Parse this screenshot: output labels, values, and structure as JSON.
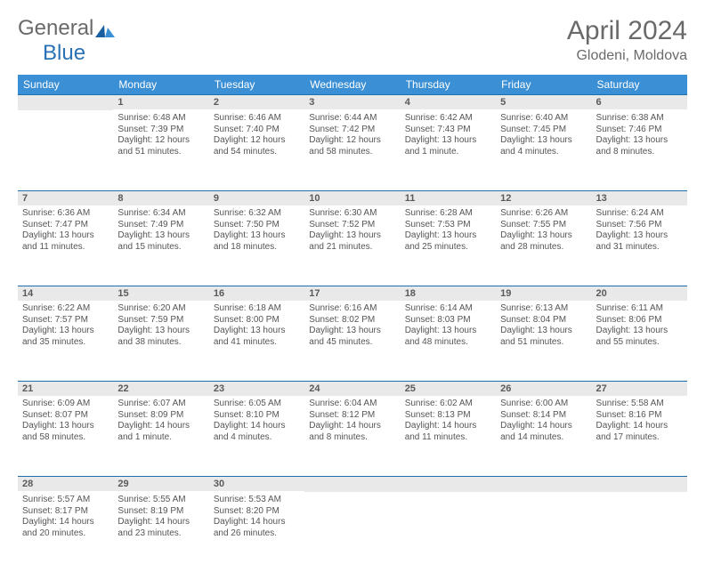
{
  "logo": {
    "word1": "General",
    "word2": "Blue"
  },
  "title": {
    "month": "April 2024",
    "location": "Glodeni, Moldova"
  },
  "colors": {
    "header_bg": "#3b8fd4",
    "header_text": "#ffffff",
    "daynum_bg": "#e9e9e9",
    "rule": "#1f6fae",
    "body_text": "#555555",
    "logo_gray": "#6a6a6a",
    "logo_blue": "#2a72b5"
  },
  "weekdays": [
    "Sunday",
    "Monday",
    "Tuesday",
    "Wednesday",
    "Thursday",
    "Friday",
    "Saturday"
  ],
  "weeks": [
    [
      null,
      {
        "n": "1",
        "sr": "Sunrise: 6:48 AM",
        "ss": "Sunset: 7:39 PM",
        "d1": "Daylight: 12 hours",
        "d2": "and 51 minutes."
      },
      {
        "n": "2",
        "sr": "Sunrise: 6:46 AM",
        "ss": "Sunset: 7:40 PM",
        "d1": "Daylight: 12 hours",
        "d2": "and 54 minutes."
      },
      {
        "n": "3",
        "sr": "Sunrise: 6:44 AM",
        "ss": "Sunset: 7:42 PM",
        "d1": "Daylight: 12 hours",
        "d2": "and 58 minutes."
      },
      {
        "n": "4",
        "sr": "Sunrise: 6:42 AM",
        "ss": "Sunset: 7:43 PM",
        "d1": "Daylight: 13 hours",
        "d2": "and 1 minute."
      },
      {
        "n": "5",
        "sr": "Sunrise: 6:40 AM",
        "ss": "Sunset: 7:45 PM",
        "d1": "Daylight: 13 hours",
        "d2": "and 4 minutes."
      },
      {
        "n": "6",
        "sr": "Sunrise: 6:38 AM",
        "ss": "Sunset: 7:46 PM",
        "d1": "Daylight: 13 hours",
        "d2": "and 8 minutes."
      }
    ],
    [
      {
        "n": "7",
        "sr": "Sunrise: 6:36 AM",
        "ss": "Sunset: 7:47 PM",
        "d1": "Daylight: 13 hours",
        "d2": "and 11 minutes."
      },
      {
        "n": "8",
        "sr": "Sunrise: 6:34 AM",
        "ss": "Sunset: 7:49 PM",
        "d1": "Daylight: 13 hours",
        "d2": "and 15 minutes."
      },
      {
        "n": "9",
        "sr": "Sunrise: 6:32 AM",
        "ss": "Sunset: 7:50 PM",
        "d1": "Daylight: 13 hours",
        "d2": "and 18 minutes."
      },
      {
        "n": "10",
        "sr": "Sunrise: 6:30 AM",
        "ss": "Sunset: 7:52 PM",
        "d1": "Daylight: 13 hours",
        "d2": "and 21 minutes."
      },
      {
        "n": "11",
        "sr": "Sunrise: 6:28 AM",
        "ss": "Sunset: 7:53 PM",
        "d1": "Daylight: 13 hours",
        "d2": "and 25 minutes."
      },
      {
        "n": "12",
        "sr": "Sunrise: 6:26 AM",
        "ss": "Sunset: 7:55 PM",
        "d1": "Daylight: 13 hours",
        "d2": "and 28 minutes."
      },
      {
        "n": "13",
        "sr": "Sunrise: 6:24 AM",
        "ss": "Sunset: 7:56 PM",
        "d1": "Daylight: 13 hours",
        "d2": "and 31 minutes."
      }
    ],
    [
      {
        "n": "14",
        "sr": "Sunrise: 6:22 AM",
        "ss": "Sunset: 7:57 PM",
        "d1": "Daylight: 13 hours",
        "d2": "and 35 minutes."
      },
      {
        "n": "15",
        "sr": "Sunrise: 6:20 AM",
        "ss": "Sunset: 7:59 PM",
        "d1": "Daylight: 13 hours",
        "d2": "and 38 minutes."
      },
      {
        "n": "16",
        "sr": "Sunrise: 6:18 AM",
        "ss": "Sunset: 8:00 PM",
        "d1": "Daylight: 13 hours",
        "d2": "and 41 minutes."
      },
      {
        "n": "17",
        "sr": "Sunrise: 6:16 AM",
        "ss": "Sunset: 8:02 PM",
        "d1": "Daylight: 13 hours",
        "d2": "and 45 minutes."
      },
      {
        "n": "18",
        "sr": "Sunrise: 6:14 AM",
        "ss": "Sunset: 8:03 PM",
        "d1": "Daylight: 13 hours",
        "d2": "and 48 minutes."
      },
      {
        "n": "19",
        "sr": "Sunrise: 6:13 AM",
        "ss": "Sunset: 8:04 PM",
        "d1": "Daylight: 13 hours",
        "d2": "and 51 minutes."
      },
      {
        "n": "20",
        "sr": "Sunrise: 6:11 AM",
        "ss": "Sunset: 8:06 PM",
        "d1": "Daylight: 13 hours",
        "d2": "and 55 minutes."
      }
    ],
    [
      {
        "n": "21",
        "sr": "Sunrise: 6:09 AM",
        "ss": "Sunset: 8:07 PM",
        "d1": "Daylight: 13 hours",
        "d2": "and 58 minutes."
      },
      {
        "n": "22",
        "sr": "Sunrise: 6:07 AM",
        "ss": "Sunset: 8:09 PM",
        "d1": "Daylight: 14 hours",
        "d2": "and 1 minute."
      },
      {
        "n": "23",
        "sr": "Sunrise: 6:05 AM",
        "ss": "Sunset: 8:10 PM",
        "d1": "Daylight: 14 hours",
        "d2": "and 4 minutes."
      },
      {
        "n": "24",
        "sr": "Sunrise: 6:04 AM",
        "ss": "Sunset: 8:12 PM",
        "d1": "Daylight: 14 hours",
        "d2": "and 8 minutes."
      },
      {
        "n": "25",
        "sr": "Sunrise: 6:02 AM",
        "ss": "Sunset: 8:13 PM",
        "d1": "Daylight: 14 hours",
        "d2": "and 11 minutes."
      },
      {
        "n": "26",
        "sr": "Sunrise: 6:00 AM",
        "ss": "Sunset: 8:14 PM",
        "d1": "Daylight: 14 hours",
        "d2": "and 14 minutes."
      },
      {
        "n": "27",
        "sr": "Sunrise: 5:58 AM",
        "ss": "Sunset: 8:16 PM",
        "d1": "Daylight: 14 hours",
        "d2": "and 17 minutes."
      }
    ],
    [
      {
        "n": "28",
        "sr": "Sunrise: 5:57 AM",
        "ss": "Sunset: 8:17 PM",
        "d1": "Daylight: 14 hours",
        "d2": "and 20 minutes."
      },
      {
        "n": "29",
        "sr": "Sunrise: 5:55 AM",
        "ss": "Sunset: 8:19 PM",
        "d1": "Daylight: 14 hours",
        "d2": "and 23 minutes."
      },
      {
        "n": "30",
        "sr": "Sunrise: 5:53 AM",
        "ss": "Sunset: 8:20 PM",
        "d1": "Daylight: 14 hours",
        "d2": "and 26 minutes."
      },
      null,
      null,
      null,
      null
    ]
  ]
}
